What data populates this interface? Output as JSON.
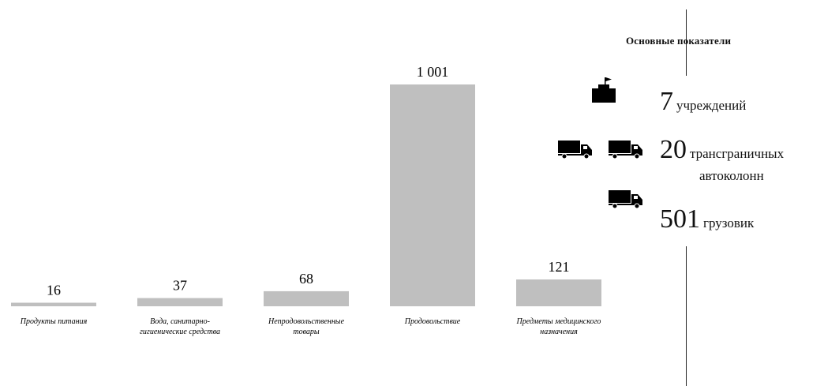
{
  "chart_data": {
    "type": "bar",
    "categories": [
      [
        "Продукты питания"
      ],
      [
        "Вода, санитарно-",
        "гигиенические средства"
      ],
      [
        "Непродовольственные",
        "товары"
      ],
      [
        "Продовольствие"
      ],
      [
        "Предметы медицинского",
        "назначения"
      ]
    ],
    "values": [
      16,
      37,
      68,
      1001,
      121
    ],
    "value_labels": [
      "16",
      "37",
      "68",
      "1 001",
      "121"
    ],
    "ylim": [
      0,
      1001
    ],
    "grid": false,
    "bar_color": "#bfbfbf"
  },
  "panel": {
    "title": "Основные показатели",
    "stats": [
      {
        "number": "7",
        "text": "учреждений",
        "icon": "building-flag-icon"
      },
      {
        "number": "20",
        "text_line1": "трансграничных",
        "text_line2": "автоколонн",
        "icon": "truck-icon"
      },
      {
        "number": "501",
        "text": "грузовик",
        "icon": "truck-icon"
      }
    ]
  }
}
